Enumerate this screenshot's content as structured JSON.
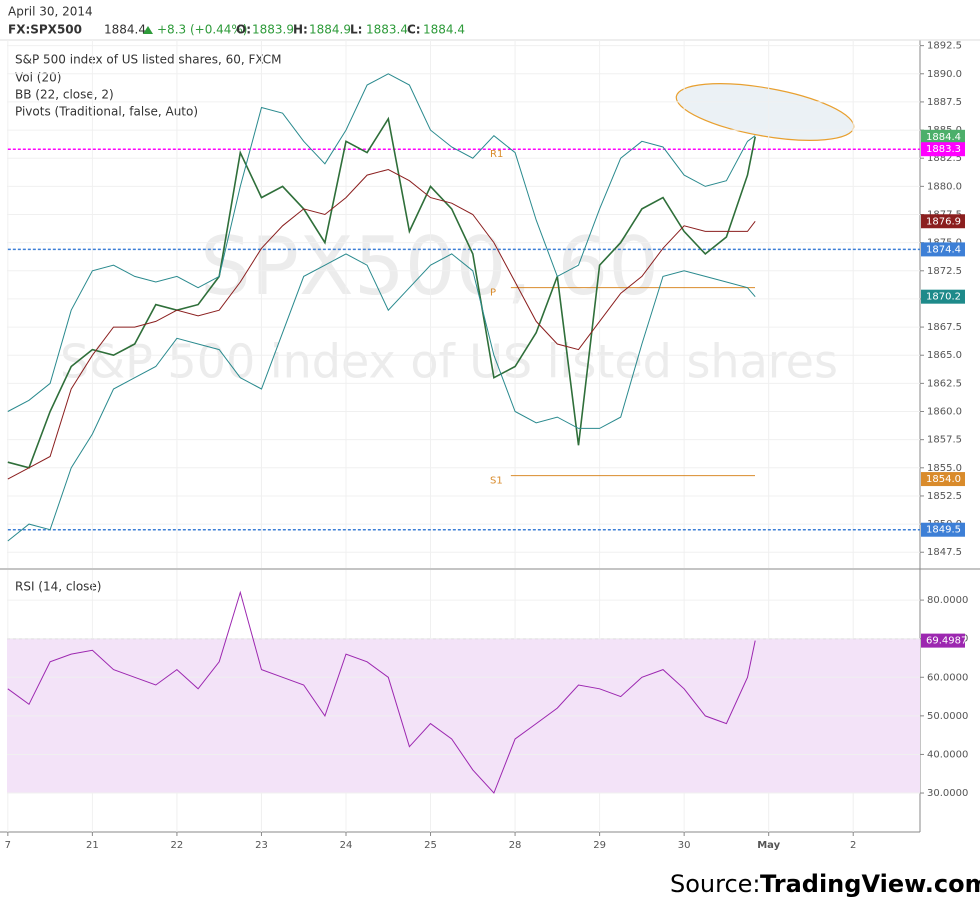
{
  "header": {
    "date": "April 30, 2014",
    "symbol": "FX:SPX500",
    "last": 1884.4,
    "change": "+8.3 (+0.44%)",
    "ohlc": [
      {
        "label": "O:",
        "value": 1883.9
      },
      {
        "label": "H:",
        "value": 1884.9
      },
      {
        "label": "L:",
        "value": 1883.4
      },
      {
        "label": "C:",
        "value": 1884.4
      }
    ]
  },
  "chart_data": [
    {
      "type": "line",
      "title": "S&P 500 index of US listed shares, 60, FXCM",
      "indicators": [
        "Vol (20)",
        "BB (22, close, 2)",
        "Pivots (Traditional, false, Auto)"
      ],
      "watermark": [
        "SPX500, 60",
        "S&P 500 index of US listed shares"
      ],
      "x": [
        0,
        0.25,
        0.5,
        0.75,
        1,
        1.25,
        1.5,
        1.75,
        2,
        2.25,
        2.5,
        2.75,
        3,
        3.25,
        3.5,
        3.75,
        4,
        4.25,
        4.5,
        4.75,
        5,
        5.25,
        5.5,
        5.75,
        6,
        6.25,
        6.5,
        6.75,
        7,
        7.25,
        7.5,
        7.75,
        8,
        8.25,
        8.5,
        8.75,
        8.84
      ],
      "series": [
        {
          "color": "#2f6f3a",
          "width": 1.6,
          "values": [
            1855.5,
            1855,
            1860,
            1864,
            1865.5,
            1865,
            1866,
            1869.5,
            1869,
            1869.5,
            1872,
            1883,
            1879,
            1880,
            1878,
            1875,
            1884,
            1883,
            1886,
            1876,
            1880,
            1878,
            1874,
            1863,
            1864,
            1867,
            1872,
            1857,
            1873,
            1875,
            1878,
            1879,
            1876,
            1874,
            1875.5,
            1881,
            1884.4
          ]
        },
        {
          "color": "#2a8a8e",
          "width": 1,
          "values": [
            1860,
            1861,
            1862.5,
            1869,
            1872.5,
            1873,
            1872,
            1871.5,
            1872,
            1871,
            1872,
            1880,
            1887,
            1886.5,
            1884,
            1882,
            1885,
            1889,
            1890,
            1889,
            1885,
            1883.5,
            1882.5,
            1884.5,
            1883,
            1877,
            1872,
            1873,
            1878,
            1882.5,
            1884,
            1883.5,
            1881,
            1880,
            1880.5,
            1884,
            1884.5
          ]
        },
        {
          "color": "#8b1f1f",
          "width": 1,
          "values": [
            1854,
            1855,
            1856,
            1862,
            1865,
            1867.5,
            1867.5,
            1868,
            1869,
            1868.5,
            1869,
            1871.5,
            1874.5,
            1876.5,
            1878,
            1877.5,
            1879,
            1881,
            1881.5,
            1880.5,
            1879,
            1878.5,
            1877.5,
            1875,
            1871.5,
            1868,
            1866,
            1865.5,
            1868,
            1870.5,
            1872,
            1874.5,
            1876.5,
            1876,
            1876,
            1876,
            1876.9
          ]
        },
        {
          "color": "#2a8a8e",
          "width": 1,
          "values": [
            1848.5,
            1850,
            1849.5,
            1855,
            1858,
            1862,
            1863,
            1864,
            1866.5,
            1866,
            1865.5,
            1863,
            1862,
            1867,
            1872,
            1873,
            1874,
            1873,
            1869,
            1871,
            1873,
            1874,
            1872.5,
            1865,
            1860,
            1859,
            1859.5,
            1858.5,
            1858.5,
            1859.5,
            1866,
            1872,
            1872.5,
            1872,
            1871.5,
            1871,
            1870.2
          ]
        }
      ],
      "levels": [
        {
          "value": 1883.3,
          "color": "#ff00ff",
          "dashed": true,
          "name": "R1",
          "from": 0
        },
        {
          "value": 1874.4,
          "color": "#3d7fd6",
          "dashed": true,
          "from": 0
        },
        {
          "value": 1849.5,
          "color": "#3d7fd6",
          "dashed": true,
          "from": 0
        },
        {
          "value": 1871,
          "color": "#d98b2b",
          "dashed": false,
          "name": "P",
          "from": 5.95
        },
        {
          "value": 1854.3,
          "color": "#d98b2b",
          "dashed": false,
          "name": "S1",
          "from": 5.95
        }
      ],
      "markers": [
        {
          "value": 1884.4,
          "color": "#4caf6a"
        },
        {
          "value": 1883.3,
          "color": "#ff00ff"
        },
        {
          "value": 1876.9,
          "color": "#8b1f1f"
        },
        {
          "value": 1874.4,
          "color": "#3d7fd6"
        },
        {
          "value": 1870.2,
          "color": "#1e8a8a"
        },
        {
          "value": 1854,
          "label": "1854.0",
          "color": "#d98b2b"
        },
        {
          "value": 1849.5,
          "color": "#3d7fd6"
        }
      ],
      "xlim": [
        -0.01,
        10.79
      ],
      "ylim": [
        1846.1,
        1893.0
      ],
      "xticks": [
        {
          "value": 0,
          "label": "7"
        },
        {
          "value": 1,
          "label": "21"
        },
        {
          "value": 2,
          "label": "22"
        },
        {
          "value": 3,
          "label": "23"
        },
        {
          "value": 4,
          "label": "24"
        },
        {
          "value": 5,
          "label": "25"
        },
        {
          "value": 6,
          "label": "28"
        },
        {
          "value": 7,
          "label": "29"
        },
        {
          "value": 8,
          "label": "30"
        },
        {
          "value": 9,
          "label": "May"
        },
        {
          "value": 10,
          "label": "2"
        }
      ],
      "yticks": [
        1847.5,
        {
          "value": 1850,
          "label": "1850.0"
        },
        1852.5,
        {
          "value": 1855,
          "label": "1855.0"
        },
        1857.5,
        {
          "value": 1860,
          "label": "1860.0"
        },
        1862.5,
        {
          "value": 1865,
          "label": "1865.0"
        },
        1867.5,
        {
          "value": 1870,
          "label": "1870.0"
        },
        1872.5,
        {
          "value": 1875,
          "label": "1875.0"
        },
        1877.5,
        {
          "value": 1880,
          "label": "1880.0"
        },
        1882.5,
        {
          "value": 1885,
          "label": "1885.0"
        },
        1887.5,
        {
          "value": 1890,
          "label": "1890.0"
        },
        1892.5
      ],
      "grid": true
    },
    {
      "type": "line",
      "title": "RSI (14, close)",
      "x": [
        0,
        0.25,
        0.5,
        0.75,
        1,
        1.25,
        1.5,
        1.75,
        2,
        2.25,
        2.5,
        2.75,
        3,
        3.25,
        3.5,
        3.75,
        4,
        4.25,
        4.5,
        4.75,
        5,
        5.25,
        5.5,
        5.75,
        6,
        6.25,
        6.5,
        6.75,
        7,
        7.25,
        7.5,
        7.75,
        8,
        8.25,
        8.5,
        8.75,
        8.84
      ],
      "series": [
        {
          "color": "#9c27b0",
          "width": 1,
          "values": [
            57,
            53,
            64,
            66,
            67,
            62,
            60,
            58,
            62,
            57,
            64,
            82,
            62,
            60,
            58,
            50,
            66,
            64,
            60,
            42,
            48,
            44,
            36,
            30,
            44,
            48,
            52,
            58,
            57,
            55,
            60,
            62,
            57,
            50,
            48,
            60,
            69.4987
          ]
        }
      ],
      "band": [
        30,
        70
      ],
      "band_color": "#f3e3f8",
      "markers": [
        {
          "value": 69.4987,
          "color": "#9c27b0"
        }
      ],
      "xlim": [
        -0.01,
        10.79
      ],
      "ylim": [
        19.9,
        87.8
      ],
      "yticks": [
        {
          "value": 30,
          "label": "30.0000"
        },
        {
          "value": 40,
          "label": "40.0000"
        },
        {
          "value": 50,
          "label": "50.0000"
        },
        {
          "value": 60,
          "label": "60.0000"
        },
        {
          "value": 70,
          "label": "70.0000"
        },
        {
          "value": 80,
          "label": "80.0000"
        }
      ],
      "grid": true
    }
  ],
  "source": {
    "prefix": "Source:",
    "site": "TradingView.com"
  }
}
